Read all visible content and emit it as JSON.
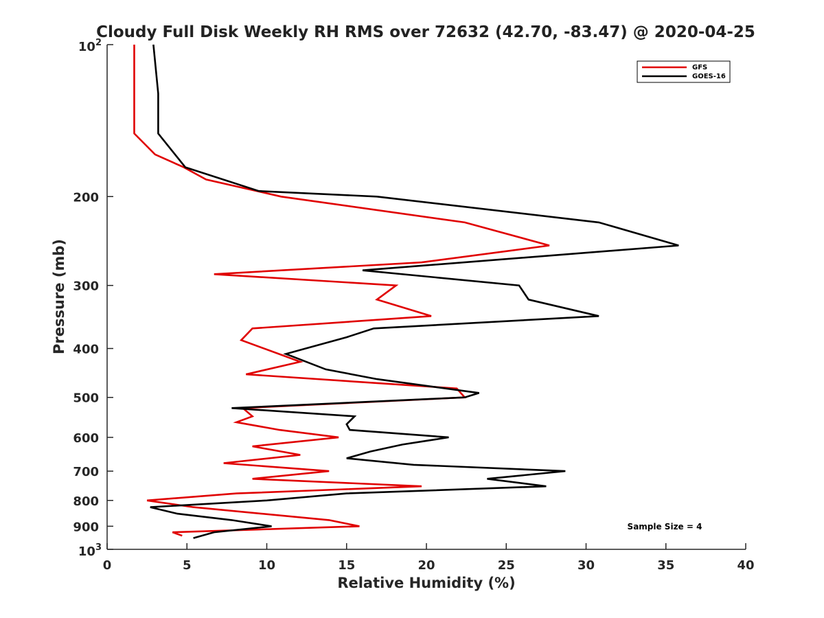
{
  "chart_data": {
    "type": "line",
    "title": "Cloudy Full Disk Weekly RH RMS over 72632 (42.70, -83.47) @ 2020-04-25",
    "xlabel": "Relative Humidity (%)",
    "ylabel": "Pressure (mb)",
    "xlim": [
      0,
      40
    ],
    "ylim": [
      100,
      1000
    ],
    "y_scale": "log",
    "y_reversed": true,
    "x_ticks": [
      "0",
      "5",
      "10",
      "15",
      "20",
      "25",
      "30",
      "35",
      "40"
    ],
    "y_ticks": [
      {
        "value": 100,
        "base": "10",
        "exp": "2"
      },
      {
        "value": 200,
        "label": "200"
      },
      {
        "value": 300,
        "label": "300"
      },
      {
        "value": 400,
        "label": "400"
      },
      {
        "value": 500,
        "label": "500"
      },
      {
        "value": 600,
        "label": "600"
      },
      {
        "value": 700,
        "label": "700"
      },
      {
        "value": 800,
        "label": "800"
      },
      {
        "value": 900,
        "label": "900"
      },
      {
        "value": 1000,
        "base": "10",
        "exp": "3"
      }
    ],
    "grid": false,
    "legend_position": "top-right",
    "annotation": "Sample Size = 4",
    "series": [
      {
        "name": "GFS",
        "color": "#e00000",
        "points": [
          [
            1.7,
            100
          ],
          [
            1.7,
            125
          ],
          [
            1.7,
            150
          ],
          [
            3.0,
            165
          ],
          [
            4.8,
            175
          ],
          [
            6.2,
            185
          ],
          [
            10.9,
            200
          ],
          [
            22.4,
            225
          ],
          [
            27.7,
            250
          ],
          [
            19.7,
            270
          ],
          [
            6.7,
            285
          ],
          [
            18.1,
            300
          ],
          [
            16.9,
            320
          ],
          [
            20.3,
            345
          ],
          [
            9.1,
            365
          ],
          [
            8.4,
            385
          ],
          [
            12.1,
            425
          ],
          [
            8.7,
            450
          ],
          [
            21.9,
            480
          ],
          [
            22.4,
            500
          ],
          [
            8.5,
            525
          ],
          [
            9.1,
            545
          ],
          [
            8.1,
            560
          ],
          [
            10.8,
            580
          ],
          [
            14.5,
            600
          ],
          [
            9.1,
            625
          ],
          [
            12.1,
            650
          ],
          [
            7.3,
            675
          ],
          [
            13.9,
            700
          ],
          [
            9.1,
            725
          ],
          [
            19.7,
            750
          ],
          [
            8.1,
            775
          ],
          [
            2.5,
            800
          ],
          [
            5.4,
            825
          ],
          [
            13.9,
            875
          ],
          [
            15.8,
            900
          ],
          [
            4.1,
            925
          ],
          [
            4.7,
            940
          ]
        ]
      },
      {
        "name": "GOES-16",
        "color": "#000000",
        "points": [
          [
            2.9,
            100
          ],
          [
            3.2,
            125
          ],
          [
            3.2,
            150
          ],
          [
            4.9,
            175
          ],
          [
            9.5,
            195
          ],
          [
            16.9,
            200
          ],
          [
            30.8,
            225
          ],
          [
            35.8,
            250
          ],
          [
            16.0,
            280
          ],
          [
            25.8,
            300
          ],
          [
            26.4,
            320
          ],
          [
            30.8,
            345
          ],
          [
            16.7,
            365
          ],
          [
            15.0,
            380
          ],
          [
            11.2,
            410
          ],
          [
            13.7,
            440
          ],
          [
            16.9,
            460
          ],
          [
            23.3,
            490
          ],
          [
            22.4,
            500
          ],
          [
            7.8,
            525
          ],
          [
            15.5,
            545
          ],
          [
            15.0,
            565
          ],
          [
            15.2,
            580
          ],
          [
            21.4,
            600
          ],
          [
            18.5,
            620
          ],
          [
            16.5,
            640
          ],
          [
            15.0,
            660
          ],
          [
            19.2,
            680
          ],
          [
            28.7,
            700
          ],
          [
            23.8,
            725
          ],
          [
            27.5,
            750
          ],
          [
            15.0,
            775
          ],
          [
            10.0,
            800
          ],
          [
            2.7,
            825
          ],
          [
            4.4,
            850
          ],
          [
            7.8,
            875
          ],
          [
            10.3,
            900
          ],
          [
            6.7,
            925
          ],
          [
            5.4,
            950
          ]
        ]
      }
    ]
  }
}
